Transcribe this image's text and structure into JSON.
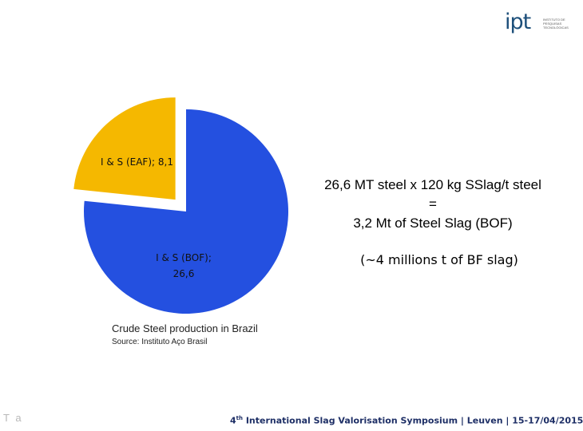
{
  "logo": {
    "text": "ipt",
    "tagline": "INSTITUTO DE PESQUISAS TECNOLÓGICAS"
  },
  "chart_data": {
    "type": "pie",
    "slices": [
      {
        "label": "I & S (BOF);",
        "value": 26.6,
        "value_label": "26,6",
        "color": "#2450e0",
        "exploded": false
      },
      {
        "label": "I & S (EAF);",
        "value": 8.1,
        "value_label": "8,1",
        "color": "#f5b800",
        "exploded": true
      }
    ]
  },
  "equation": {
    "line1": "26,6 MT steel x 120 kg SSlag/t steel",
    "line2": "=",
    "line3": "3,2 Mt of Steel Slag (BOF)"
  },
  "note": "(~4 millions t of BF slag)",
  "caption": "Crude Steel production in Brazil",
  "source": "Source: Instituto Aço Brasil",
  "corner_mark": "T a",
  "footer": {
    "ordinal": "4",
    "ordinal_suffix": "th",
    "text": " International Slag Valorisation Symposium  |  Leuven  |  15-17/04/2015"
  }
}
